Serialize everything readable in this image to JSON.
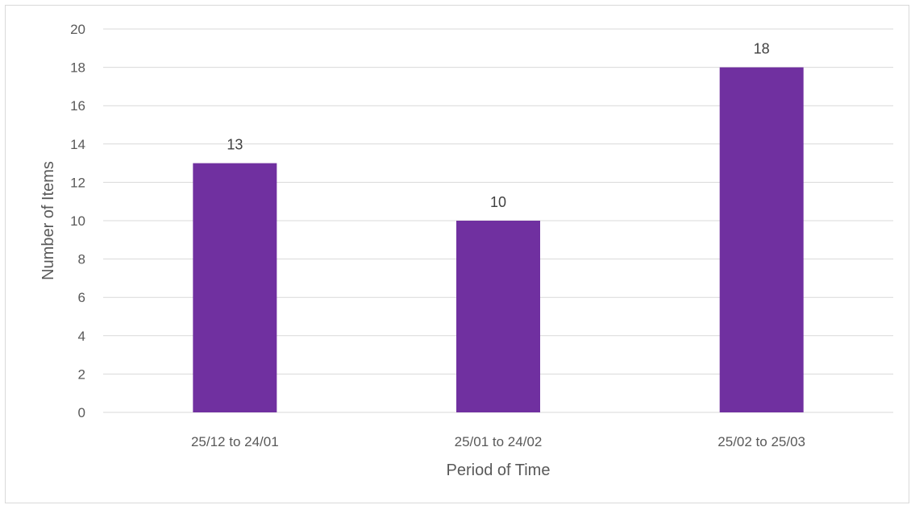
{
  "chart_data": {
    "type": "bar",
    "categories": [
      "25/12 to 24/01",
      "25/01 to 24/02",
      "25/02 to 25/03"
    ],
    "values": [
      13,
      10,
      18
    ],
    "title": "",
    "xlabel": "Period of Time",
    "ylabel": "Number of Items",
    "ylim": [
      0,
      20
    ],
    "yticks": [
      0,
      2,
      4,
      6,
      8,
      10,
      12,
      14,
      16,
      18,
      20
    ],
    "grid": true,
    "data_labels": true,
    "legend": "none",
    "bar_color": "#7030a0",
    "grid_color": "#d9d9d9"
  }
}
